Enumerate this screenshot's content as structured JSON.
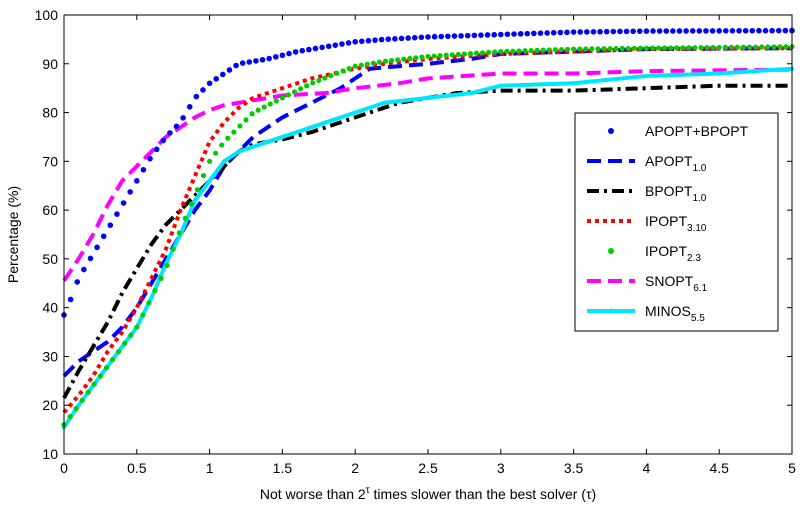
{
  "chart_data": {
    "type": "line",
    "title": "",
    "xlabel_prefix": "Not worse than 2",
    "xlabel_sup": "τ",
    "xlabel_suffix": " times slower than the best solver (τ)",
    "ylabel": "Percentage (%)",
    "xlim": [
      0,
      5
    ],
    "ylim": [
      10,
      100
    ],
    "x_ticks": [
      "0",
      "0.5",
      "1",
      "1.5",
      "2",
      "2.5",
      "3",
      "3.5",
      "4",
      "4.5",
      "5"
    ],
    "y_ticks": [
      "10",
      "20",
      "30",
      "40",
      "50",
      "60",
      "70",
      "80",
      "90",
      "100"
    ],
    "grid": false,
    "legend_position": "right",
    "series": [
      {
        "name": "APOPT+BPOPT",
        "base": "APOPT+BPOPT",
        "sub": "",
        "color": "#0000ff",
        "style": "dots",
        "points": [
          [
            0,
            38.5
          ],
          [
            0.05,
            42
          ],
          [
            0.1,
            46
          ],
          [
            0.2,
            51
          ],
          [
            0.3,
            56
          ],
          [
            0.4,
            61
          ],
          [
            0.5,
            66
          ],
          [
            0.6,
            71
          ],
          [
            0.7,
            75
          ],
          [
            0.8,
            78
          ],
          [
            0.9,
            83
          ],
          [
            1,
            86
          ],
          [
            1.1,
            88
          ],
          [
            1.2,
            90
          ],
          [
            1.4,
            91
          ],
          [
            1.6,
            92.5
          ],
          [
            1.8,
            93.5
          ],
          [
            2,
            94.5
          ],
          [
            2.2,
            95
          ],
          [
            2.5,
            95.5
          ],
          [
            3,
            96
          ],
          [
            3.5,
            96.5
          ],
          [
            4,
            96.7
          ],
          [
            5,
            96.8
          ]
        ]
      },
      {
        "name": "APOPT1.0",
        "base": "APOPT",
        "sub": "1.0",
        "color": "#0000ff",
        "style": "dash",
        "points": [
          [
            0,
            26
          ],
          [
            0.1,
            29
          ],
          [
            0.2,
            31
          ],
          [
            0.3,
            33
          ],
          [
            0.4,
            36
          ],
          [
            0.5,
            40
          ],
          [
            0.6,
            45
          ],
          [
            0.7,
            50
          ],
          [
            0.8,
            55
          ],
          [
            0.9,
            60
          ],
          [
            1,
            64
          ],
          [
            1.1,
            69
          ],
          [
            1.2,
            72
          ],
          [
            1.3,
            75
          ],
          [
            1.5,
            79
          ],
          [
            1.7,
            82
          ],
          [
            1.9,
            85
          ],
          [
            2,
            87
          ],
          [
            2.1,
            89
          ],
          [
            2.3,
            89.5
          ],
          [
            2.5,
            90
          ],
          [
            2.8,
            91
          ],
          [
            3,
            92
          ],
          [
            3.5,
            92.5
          ],
          [
            4,
            93
          ],
          [
            5,
            93.2
          ]
        ]
      },
      {
        "name": "BPOPT1.0",
        "base": "BPOPT",
        "sub": "1.0",
        "color": "#000000",
        "style": "dashdot",
        "points": [
          [
            0,
            21.5
          ],
          [
            0.1,
            27
          ],
          [
            0.2,
            32
          ],
          [
            0.3,
            37
          ],
          [
            0.4,
            43
          ],
          [
            0.5,
            48
          ],
          [
            0.6,
            53
          ],
          [
            0.7,
            57
          ],
          [
            0.8,
            60
          ],
          [
            0.9,
            63
          ],
          [
            1,
            66
          ],
          [
            1.1,
            69
          ],
          [
            1.2,
            72
          ],
          [
            1.3,
            73.5
          ],
          [
            1.5,
            74.5
          ],
          [
            1.7,
            76
          ],
          [
            2,
            79
          ],
          [
            2.3,
            82
          ],
          [
            2.5,
            83
          ],
          [
            2.7,
            84
          ],
          [
            3,
            84.5
          ],
          [
            3.5,
            84.5
          ],
          [
            4,
            85
          ],
          [
            4.5,
            85.5
          ],
          [
            5,
            85.5
          ]
        ]
      },
      {
        "name": "IPOPT3.10",
        "base": "IPOPT",
        "sub": "3.10",
        "color": "#ff0000",
        "style": "dotted",
        "points": [
          [
            0,
            18.5
          ],
          [
            0.1,
            22
          ],
          [
            0.2,
            26
          ],
          [
            0.3,
            31
          ],
          [
            0.4,
            35
          ],
          [
            0.5,
            40
          ],
          [
            0.6,
            46
          ],
          [
            0.7,
            52
          ],
          [
            0.8,
            60
          ],
          [
            0.9,
            67
          ],
          [
            1,
            74
          ],
          [
            1.1,
            78
          ],
          [
            1.2,
            81
          ],
          [
            1.3,
            83
          ],
          [
            1.5,
            85
          ],
          [
            1.7,
            87
          ],
          [
            2,
            89
          ],
          [
            2.2,
            90
          ],
          [
            2.5,
            91
          ],
          [
            3,
            92
          ],
          [
            3.5,
            92.5
          ],
          [
            4,
            93
          ],
          [
            5,
            93.2
          ]
        ]
      },
      {
        "name": "IPOPT2.3",
        "base": "IPOPT",
        "sub": "2.3",
        "color": "#00cc00",
        "style": "dots",
        "points": [
          [
            0,
            16
          ],
          [
            0.1,
            20
          ],
          [
            0.2,
            24
          ],
          [
            0.3,
            28
          ],
          [
            0.4,
            32
          ],
          [
            0.5,
            36
          ],
          [
            0.6,
            42
          ],
          [
            0.7,
            48
          ],
          [
            0.8,
            56
          ],
          [
            0.9,
            63
          ],
          [
            1,
            70
          ],
          [
            1.1,
            74
          ],
          [
            1.2,
            77
          ],
          [
            1.3,
            80
          ],
          [
            1.5,
            83
          ],
          [
            1.7,
            86
          ],
          [
            2,
            89.5
          ],
          [
            2.2,
            90.5
          ],
          [
            2.5,
            91.5
          ],
          [
            3,
            92.5
          ],
          [
            3.5,
            93
          ],
          [
            4,
            93.2
          ],
          [
            5,
            93.5
          ]
        ]
      },
      {
        "name": "SNOPT6.1",
        "base": "SNOPT",
        "sub": "6.1",
        "color": "#ff00ff",
        "style": "dash",
        "points": [
          [
            0,
            45.5
          ],
          [
            0.1,
            50
          ],
          [
            0.2,
            55
          ],
          [
            0.3,
            61
          ],
          [
            0.4,
            66
          ],
          [
            0.5,
            69
          ],
          [
            0.6,
            72
          ],
          [
            0.7,
            75
          ],
          [
            0.8,
            77
          ],
          [
            0.9,
            79
          ],
          [
            1,
            80.5
          ],
          [
            1.1,
            81.5
          ],
          [
            1.3,
            82.5
          ],
          [
            1.5,
            83.5
          ],
          [
            1.8,
            84
          ],
          [
            2,
            85
          ],
          [
            2.3,
            86
          ],
          [
            2.5,
            87
          ],
          [
            3,
            88
          ],
          [
            3.5,
            88
          ],
          [
            4,
            88.5
          ],
          [
            5,
            88.8
          ]
        ]
      },
      {
        "name": "MINOS5.5",
        "base": "MINOS",
        "sub": "5.5",
        "color": "#00e5ff",
        "style": "solid",
        "points": [
          [
            0,
            15.5
          ],
          [
            0.1,
            20
          ],
          [
            0.2,
            24
          ],
          [
            0.3,
            28
          ],
          [
            0.4,
            32
          ],
          [
            0.5,
            36
          ],
          [
            0.6,
            42
          ],
          [
            0.7,
            49
          ],
          [
            0.8,
            55
          ],
          [
            0.9,
            62
          ],
          [
            1,
            66
          ],
          [
            1.1,
            70
          ],
          [
            1.2,
            72
          ],
          [
            1.4,
            74
          ],
          [
            1.6,
            76
          ],
          [
            1.8,
            78
          ],
          [
            2,
            80
          ],
          [
            2.2,
            82
          ],
          [
            2.5,
            83
          ],
          [
            2.8,
            84
          ],
          [
            3,
            85.5
          ],
          [
            3.5,
            86
          ],
          [
            4,
            87.5
          ],
          [
            4.5,
            88
          ],
          [
            5,
            89
          ]
        ]
      }
    ]
  }
}
